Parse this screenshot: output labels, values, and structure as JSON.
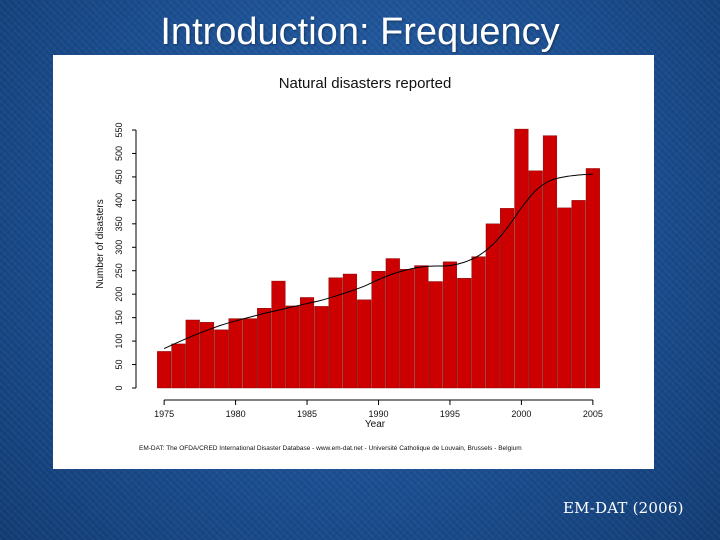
{
  "slide": {
    "title": "Introduction: Frequency",
    "caption": "EM-DAT (2006)"
  },
  "colors": {
    "background": "#1a4f92",
    "bar": "#cc0000",
    "bar_edge": "#7a0000",
    "trend": "#000000"
  },
  "chart_data": {
    "type": "bar",
    "title": "Natural disasters reported",
    "xlabel": "Year",
    "ylabel": "Number of disasters",
    "source_note": "EM-DAT: The OFDA/CRED International Disaster Database - www.em-dat.net - Université Catholique de Louvain, Brussels - Belgium",
    "x": [
      1975,
      1976,
      1977,
      1978,
      1979,
      1980,
      1981,
      1982,
      1983,
      1984,
      1985,
      1986,
      1987,
      1988,
      1989,
      1990,
      1991,
      1992,
      1993,
      1994,
      1995,
      1996,
      1997,
      1998,
      1999,
      2000,
      2001,
      2002,
      2003,
      2004,
      2005
    ],
    "values": [
      78,
      94,
      145,
      140,
      124,
      148,
      148,
      170,
      228,
      175,
      193,
      174,
      235,
      243,
      188,
      249,
      276,
      253,
      261,
      227,
      269,
      234,
      280,
      350,
      383,
      552,
      463,
      538,
      384,
      400,
      468
    ],
    "trend_line": [
      84,
      98,
      111,
      123,
      134,
      143,
      151,
      159,
      166,
      173,
      180,
      187,
      196,
      206,
      217,
      231,
      243,
      252,
      258,
      260,
      261,
      268,
      282,
      306,
      341,
      384,
      421,
      442,
      450,
      454,
      456
    ],
    "xticks": [
      "1975",
      "1980",
      "1985",
      "1990",
      "1995",
      "2000",
      "2005"
    ],
    "yticks": [
      "0",
      "50",
      "100",
      "150",
      "200",
      "250",
      "300",
      "350",
      "400",
      "450",
      "500",
      "550"
    ],
    "ylim": [
      0,
      550
    ]
  }
}
